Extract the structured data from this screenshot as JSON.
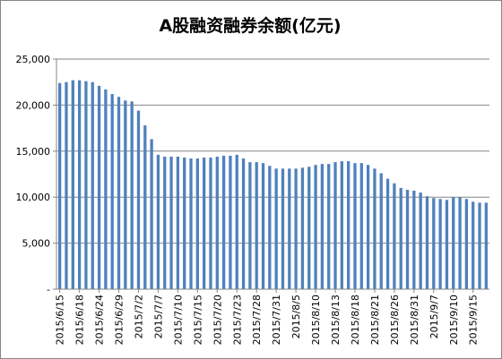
{
  "chart_data": {
    "type": "bar",
    "title": "A股融资融券余额(亿元)",
    "xlabel": "",
    "ylabel": "",
    "ylim": [
      0,
      25000
    ],
    "yticks": [
      0,
      5000,
      10000,
      15000,
      20000,
      25000
    ],
    "ytick_labels": [
      "-",
      "5,000",
      "10,000",
      "15,000",
      "20,000",
      "25,000"
    ],
    "grid": true,
    "legend": "none",
    "colors": {
      "bar": "#4F81BD",
      "grid": "#868686",
      "axis": "#868686"
    },
    "categories": [
      "2015/6/15",
      "2015/6/16",
      "2015/6/17",
      "2015/6/18",
      "2015/6/19",
      "2015/6/23",
      "2015/6/24",
      "2015/6/25",
      "2015/6/26",
      "2015/6/29",
      "2015/6/30",
      "2015/7/1",
      "2015/7/2",
      "2015/7/3",
      "2015/7/6",
      "2015/7/7",
      "2015/7/8",
      "2015/7/9",
      "2015/7/10",
      "2015/7/13",
      "2015/7/14",
      "2015/7/15",
      "2015/7/16",
      "2015/7/17",
      "2015/7/20",
      "2015/7/21",
      "2015/7/22",
      "2015/7/23",
      "2015/7/24",
      "2015/7/27",
      "2015/7/28",
      "2015/7/29",
      "2015/7/30",
      "2015/7/31",
      "2015/8/3",
      "2015/8/4",
      "2015/8/5",
      "2015/8/6",
      "2015/8/7",
      "2015/8/10",
      "2015/8/11",
      "2015/8/12",
      "2015/8/13",
      "2015/8/14",
      "2015/8/17",
      "2015/8/18",
      "2015/8/19",
      "2015/8/20",
      "2015/8/21",
      "2015/8/24",
      "2015/8/25",
      "2015/8/26",
      "2015/8/27",
      "2015/8/28",
      "2015/8/31",
      "2015/9/1",
      "2015/9/2",
      "2015/9/7",
      "2015/9/8",
      "2015/9/9",
      "2015/9/10",
      "2015/9/11",
      "2015/9/14",
      "2015/9/15",
      "2015/9/16",
      "2015/9/17"
    ],
    "shown_category_labels": [
      "2015/6/15",
      "2015/6/18",
      "2015/6/24",
      "2015/6/29",
      "2015/7/2",
      "2015/7/7",
      "2015/7/10",
      "2015/7/15",
      "2015/7/20",
      "2015/7/23",
      "2015/7/28",
      "2015/7/31",
      "2015/8/5",
      "2015/8/10",
      "2015/8/13",
      "2015/8/18",
      "2015/8/21",
      "2015/8/26",
      "2015/8/31",
      "2015/9/7",
      "2015/9/10",
      "2015/9/15"
    ],
    "values": [
      22400,
      22500,
      22700,
      22700,
      22600,
      22500,
      22100,
      21700,
      21200,
      20900,
      20500,
      20400,
      19400,
      17800,
      16300,
      14600,
      14400,
      14400,
      14400,
      14300,
      14200,
      14200,
      14300,
      14300,
      14400,
      14500,
      14500,
      14600,
      14200,
      13800,
      13800,
      13700,
      13400,
      13100,
      13100,
      13100,
      13100,
      13200,
      13300,
      13500,
      13600,
      13600,
      13800,
      13900,
      13900,
      13700,
      13700,
      13500,
      13100,
      12600,
      12000,
      11500,
      11000,
      10800,
      10700,
      10500,
      10100,
      9900,
      9800,
      9700,
      10000,
      10000,
      9800,
      9500,
      9400,
      9400
    ]
  }
}
